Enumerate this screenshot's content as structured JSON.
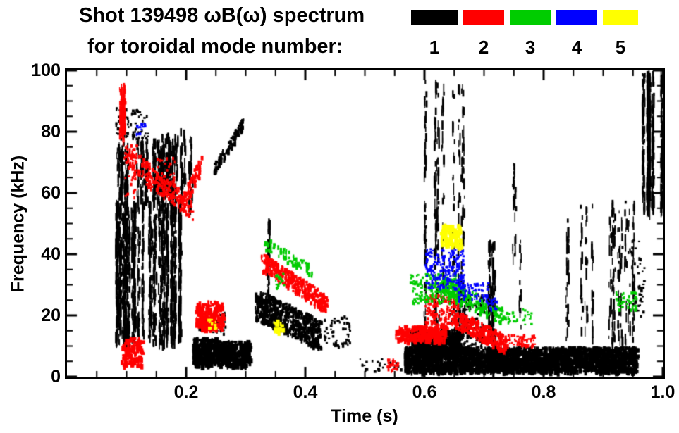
{
  "title": {
    "line1": "Shot 139498 ωB(ω) spectrum",
    "line2": "for toroidal mode number:"
  },
  "axes": {
    "xlabel": "Time (s)",
    "ylabel": "Frequency (kHz)",
    "x_ticks": [
      "0.2",
      "0.4",
      "0.6",
      "0.8",
      "1.0"
    ],
    "x_tick_values": [
      0.2,
      0.4,
      0.6,
      0.8,
      1.0
    ],
    "y_ticks": [
      "0",
      "20",
      "40",
      "60",
      "80",
      "100"
    ],
    "y_tick_values": [
      0,
      20,
      40,
      60,
      80,
      100
    ],
    "xlim": [
      0,
      1.0
    ],
    "ylim": [
      0,
      100
    ]
  },
  "chart_data": {
    "type": "scatter",
    "title": "Shot 139498 ωB(ω) spectrum for toroidal mode number",
    "xlabel": "Time (s)",
    "ylabel": "Frequency (kHz)",
    "xlim": [
      0,
      1.0
    ],
    "ylim": [
      0,
      100
    ],
    "grid": false,
    "legend_position": "top-right",
    "modes": [
      {
        "label": "1",
        "color": "#000000",
        "clusters": [
          {
            "t": [
              0.075,
              0.19
            ],
            "f": [
              12,
              58
            ],
            "n": 1500,
            "s": "streaks",
            "c": 36
          },
          {
            "t": [
              0.075,
              0.185
            ],
            "f": [
              58,
              78
            ],
            "n": 380,
            "s": "streaks",
            "c": 26
          },
          {
            "t": [
              0.08,
              0.135
            ],
            "f": [
              78,
              88
            ],
            "n": 70,
            "s": "scatter"
          },
          {
            "t": [
              0.155,
              0.185
            ],
            "f": [
              60,
              80
            ],
            "n": 140,
            "s": "streaks",
            "c": 8
          },
          {
            "t": [
              0.19,
              0.21
            ],
            "f": [
              55,
              82
            ],
            "n": 80,
            "s": "streaks",
            "c": 5
          },
          {
            "t": [
              0.245,
              0.295
            ],
            "f": [
              68,
              83
            ],
            "n": 110,
            "s": "diag",
            "j": 2
          },
          {
            "t": [
              0.21,
              0.25
            ],
            "f": [
              4,
              13
            ],
            "n": 300,
            "s": "band"
          },
          {
            "t": [
              0.25,
              0.305
            ],
            "f": [
              4,
              12
            ],
            "n": 300,
            "s": "band"
          },
          {
            "t": [
              0.22,
              0.265
            ],
            "f": [
              14,
              22
            ],
            "n": 60,
            "s": "scatter"
          },
          {
            "t": [
              0.315,
              0.425
            ],
            "f": [
              24,
              14
            ],
            "n": 650,
            "s": "diag",
            "j": 5
          },
          {
            "t": [
              0.328,
              0.338
            ],
            "f": [
              28,
              52
            ],
            "n": 45,
            "s": "streaks",
            "c": 2
          },
          {
            "t": [
              0.43,
              0.475
            ],
            "f": [
              10,
              20
            ],
            "n": 55,
            "s": "scatter"
          },
          {
            "t": [
              0.49,
              0.56
            ],
            "f": [
              2,
              6
            ],
            "n": 30,
            "s": "scatter"
          },
          {
            "t": [
              0.565,
              0.955
            ],
            "f": [
              2,
              10
            ],
            "n": 2400,
            "s": "band"
          },
          {
            "t": [
              0.575,
              0.66
            ],
            "f": [
              9,
              16
            ],
            "n": 320,
            "s": "band"
          },
          {
            "t": [
              0.6,
              0.665
            ],
            "f": [
              15,
              97
            ],
            "n": 280,
            "s": "streaks",
            "c": 10
          },
          {
            "t": [
              0.64,
              0.7
            ],
            "f": [
              10,
              28
            ],
            "n": 160,
            "s": "scatter"
          },
          {
            "t": [
              0.695,
              0.76
            ],
            "f": [
              12,
              45
            ],
            "n": 130,
            "s": "streaks",
            "c": 8
          },
          {
            "t": [
              0.745,
              0.755
            ],
            "f": [
              40,
              70
            ],
            "n": 30,
            "s": "streaks",
            "c": 2
          },
          {
            "t": [
              0.82,
              0.95
            ],
            "f": [
              12,
              58
            ],
            "n": 240,
            "s": "streaks",
            "c": 15
          },
          {
            "t": [
              0.945,
              0.97
            ],
            "f": [
              20,
              45
            ],
            "n": 45,
            "s": "scatter"
          },
          {
            "t": [
              0.965,
              1.0
            ],
            "f": [
              55,
              100
            ],
            "n": 550,
            "s": "streaks",
            "c": 7
          }
        ]
      },
      {
        "label": "2",
        "color": "#ff0000",
        "clusters": [
          {
            "t": [
              0.085,
              0.105
            ],
            "f": [
              78,
              96
            ],
            "n": 90,
            "s": "streaks",
            "c": 3
          },
          {
            "t": [
              0.1,
              0.21
            ],
            "f": [
              72,
              55
            ],
            "n": 170,
            "s": "diag",
            "j": 4
          },
          {
            "t": [
              0.19,
              0.225
            ],
            "f": [
              56,
              70
            ],
            "n": 80,
            "s": "diag",
            "j": 3
          },
          {
            "t": [
              0.09,
              0.125
            ],
            "f": [
              4,
              13
            ],
            "n": 100,
            "s": "band"
          },
          {
            "t": [
              0.095,
              0.115
            ],
            "f": [
              58,
              76
            ],
            "n": 45,
            "s": "scatter"
          },
          {
            "t": [
              0.15,
              0.18
            ],
            "f": [
              60,
              72
            ],
            "n": 50,
            "s": "scatter"
          },
          {
            "t": [
              0.215,
              0.26
            ],
            "f": [
              16,
              25
            ],
            "n": 170,
            "s": "band"
          },
          {
            "t": [
              0.325,
              0.435
            ],
            "f": [
              38,
              24
            ],
            "n": 340,
            "s": "diag",
            "j": 3
          },
          {
            "t": [
              0.535,
              0.555
            ],
            "f": [
              2,
              6
            ],
            "n": 25,
            "s": "scatter"
          },
          {
            "t": [
              0.55,
              0.635
            ],
            "f": [
              12,
              17
            ],
            "n": 220,
            "s": "band"
          },
          {
            "t": [
              0.6,
              0.655
            ],
            "f": [
              17,
              27
            ],
            "n": 170,
            "s": "scatter"
          },
          {
            "t": [
              0.645,
              0.735
            ],
            "f": [
              20,
              11
            ],
            "n": 300,
            "s": "diag",
            "j": 3
          },
          {
            "t": [
              0.735,
              0.785
            ],
            "f": [
              10,
              14
            ],
            "n": 60,
            "s": "scatter"
          }
        ]
      },
      {
        "label": "3",
        "color": "#00cc00",
        "clusters": [
          {
            "t": [
              0.33,
              0.41
            ],
            "f": [
              44,
              35
            ],
            "n": 70,
            "s": "diag",
            "j": 2
          },
          {
            "t": [
              0.345,
              0.365
            ],
            "f": [
              29,
              34
            ],
            "n": 18,
            "s": "scatter"
          },
          {
            "t": [
              0.575,
              0.655
            ],
            "f": [
              24,
              34
            ],
            "n": 170,
            "s": "scatter"
          },
          {
            "t": [
              0.63,
              0.73
            ],
            "f": [
              30,
              20
            ],
            "n": 150,
            "s": "diag",
            "j": 3
          },
          {
            "t": [
              0.73,
              0.78
            ],
            "f": [
              17,
              23
            ],
            "n": 30,
            "s": "scatter"
          },
          {
            "t": [
              0.92,
              0.955
            ],
            "f": [
              22,
              28
            ],
            "n": 40,
            "s": "scatter"
          }
        ]
      },
      {
        "label": "4",
        "color": "#0000ff",
        "clusters": [
          {
            "t": [
              0.115,
              0.13
            ],
            "f": [
              79,
              83
            ],
            "n": 12,
            "s": "scatter"
          },
          {
            "t": [
              0.6,
              0.665
            ],
            "f": [
              29,
              42
            ],
            "n": 190,
            "s": "scatter"
          },
          {
            "t": [
              0.655,
              0.705
            ],
            "f": [
              25,
              31
            ],
            "n": 60,
            "s": "scatter"
          },
          {
            "t": [
              0.7,
              0.72
            ],
            "f": [
              22,
              26
            ],
            "n": 20,
            "s": "scatter"
          }
        ]
      },
      {
        "label": "5",
        "color": "#ffff00",
        "clusters": [
          {
            "t": [
              0.235,
              0.25
            ],
            "f": [
              16,
              19
            ],
            "n": 12,
            "s": "scatter"
          },
          {
            "t": [
              0.345,
              0.36
            ],
            "f": [
              15,
              19
            ],
            "n": 22,
            "s": "band"
          },
          {
            "t": [
              0.625,
              0.66
            ],
            "f": [
              43,
              50
            ],
            "n": 100,
            "s": "band"
          }
        ]
      }
    ]
  }
}
